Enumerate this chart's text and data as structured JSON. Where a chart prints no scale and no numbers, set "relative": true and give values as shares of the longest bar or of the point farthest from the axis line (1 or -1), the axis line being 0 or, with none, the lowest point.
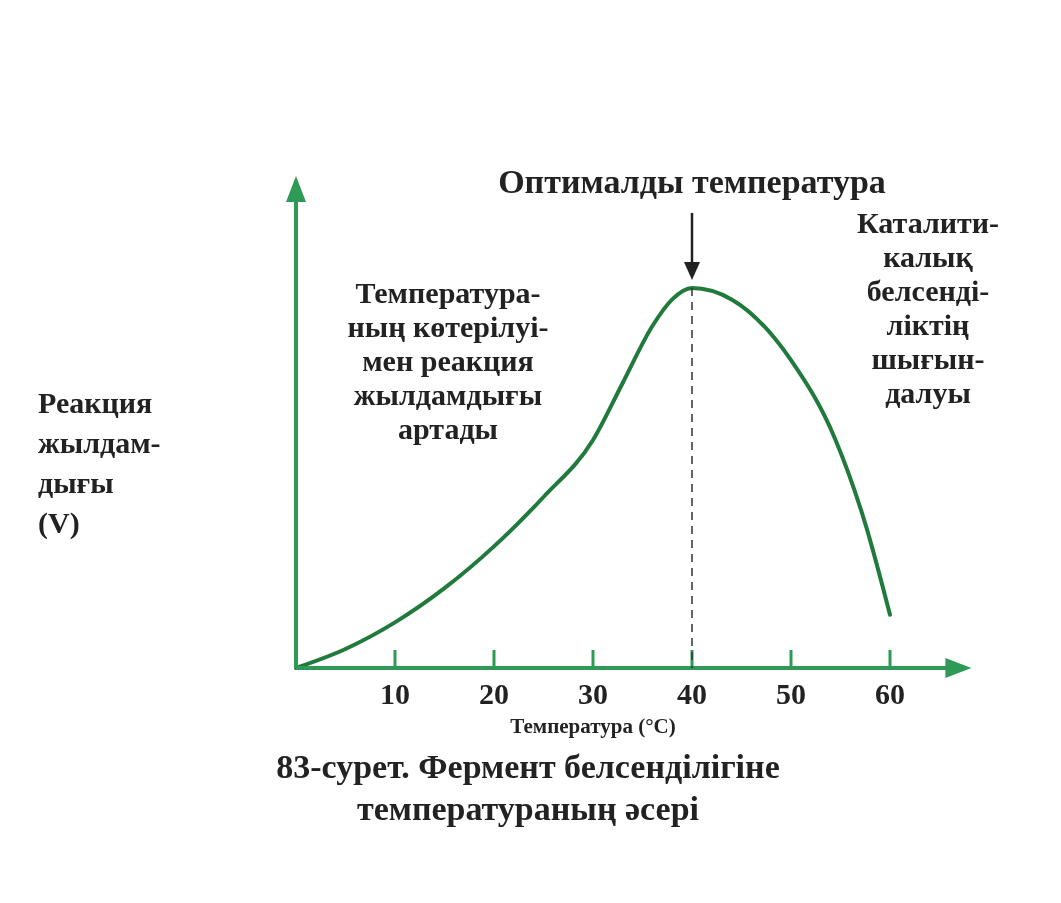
{
  "chart_data": {
    "type": "line",
    "relative": true,
    "title": "83-сурет. Фермент белсенділігіне\nтемператураның әсері",
    "xlabel": "Температура (°C)",
    "ylabel": "Реакция\nжылдам-\nдығы\n(V)",
    "x": [
      0,
      5,
      10,
      15,
      20,
      25,
      30,
      33,
      36,
      38,
      40,
      44,
      50,
      54.5,
      57.5,
      60
    ],
    "series": [
      {
        "color": "#1f7a3c",
        "values": [
          0,
          0.05,
          0.12,
          0.21,
          0.32,
          0.45,
          0.6,
          0.75,
          0.9,
          0.97,
          1,
          0.97,
          0.81,
          0.6,
          0.38,
          0.14
        ]
      }
    ],
    "xlim": [
      0,
      66
    ],
    "xticks": [
      10,
      20,
      30,
      40,
      50,
      60
    ],
    "ref_lines": [
      {
        "axis": "x",
        "value": 40,
        "label": "Оптималды температура",
        "line_style": "dashed",
        "color": "#333333"
      }
    ],
    "annotations": [
      "Температура-\nның көтерілуі-\nмен реакция\nжылдамдығы\nартады",
      "Каталити-\nкалық\nбелсенді-\nліктің\nшығын-\nдалуы"
    ],
    "line_style": "solid"
  }
}
